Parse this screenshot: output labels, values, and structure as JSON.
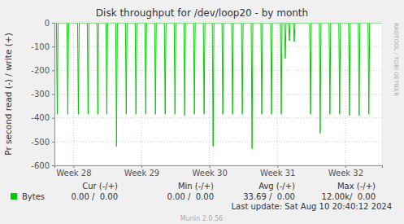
{
  "chart_data": {
    "type": "line",
    "title": "Disk throughput for /dev/loop20 - by month",
    "y_label": "Pr second read (-) / write (+)",
    "x": [
      27.72,
      27.749,
      27.761,
      27.773,
      27.904,
      27.916,
      27.928,
      28.06,
      28.072,
      28.084,
      28.203,
      28.215,
      28.227,
      28.346,
      28.358,
      28.37,
      28.478,
      28.49,
      28.502,
      28.621,
      28.633,
      28.645,
      28.764,
      28.776,
      28.788,
      28.907,
      28.919,
      28.931,
      29.051,
      29.063,
      29.075,
      29.194,
      29.206,
      29.218,
      29.337,
      29.349,
      29.361,
      29.481,
      29.493,
      29.505,
      29.624,
      29.636,
      29.648,
      29.767,
      29.779,
      29.791,
      29.91,
      29.922,
      29.934,
      30.042,
      30.054,
      30.066,
      30.185,
      30.197,
      30.209,
      30.328,
      30.34,
      30.352,
      30.472,
      30.484,
      30.496,
      30.615,
      30.627,
      30.639,
      30.758,
      30.77,
      30.782,
      30.901,
      30.913,
      30.925,
      31.045,
      31.057,
      31.069,
      31.104,
      31.116,
      31.128,
      31.164,
      31.176,
      31.188,
      31.236,
      31.248,
      31.26,
      31.475,
      31.487,
      31.499,
      31.618,
      31.63,
      31.642,
      31.761,
      31.773,
      31.785,
      31.904,
      31.916,
      31.928,
      32.048,
      32.06,
      32.072,
      32.191,
      32.203,
      32.215,
      32.334,
      32.346,
      32.358,
      32.54
    ],
    "series": [
      {
        "name": "Bytes",
        "color": "#00cc00",
        "values": [
          0,
          0,
          -385,
          0,
          0,
          -385,
          0,
          0,
          -385,
          0,
          0,
          -385,
          0,
          0,
          -385,
          0,
          0,
          -385,
          0,
          0,
          -520,
          0,
          0,
          -385,
          0,
          0,
          -385,
          0,
          0,
          -385,
          0,
          0,
          -385,
          0,
          0,
          -385,
          0,
          0,
          -385,
          0,
          0,
          -390,
          0,
          0,
          -385,
          0,
          0,
          -385,
          0,
          0,
          -520,
          0,
          0,
          -385,
          0,
          0,
          -385,
          0,
          0,
          -385,
          0,
          0,
          -530,
          0,
          0,
          -385,
          0,
          0,
          -385,
          0,
          0,
          -385,
          0,
          0,
          -150,
          0,
          0,
          -75,
          0,
          0,
          -80,
          0,
          0,
          -385,
          0,
          0,
          -465,
          0,
          0,
          -385,
          0,
          0,
          -385,
          0,
          0,
          -390,
          0,
          0,
          -390,
          0,
          0,
          -385,
          0,
          0
        ]
      }
    ],
    "xlim": [
      27.72,
      32.54
    ],
    "xticks": [
      {
        "value": 28,
        "label": "Week 28"
      },
      {
        "value": 29,
        "label": "Week 29"
      },
      {
        "value": 30,
        "label": "Week 30"
      },
      {
        "value": 31,
        "label": "Week 31"
      },
      {
        "value": 32,
        "label": "Week 32"
      }
    ],
    "ylim": [
      -600,
      0
    ],
    "yticks": [
      -600,
      -500,
      -400,
      -300,
      -200,
      -100,
      0
    ],
    "grid": true,
    "summary": {
      "headers": [
        "Cur (-/+)",
        "Min (-/+)",
        "Avg (-/+)",
        "Max (-/+)"
      ],
      "values": [
        [
          "0.00 /  0.00",
          "0.00 /  0.00",
          "33.69 /  0.00",
          "12.00k/  0.00"
        ]
      ]
    },
    "last_update": "Last update: Sat Aug 10 20:40:12 2024",
    "footer": "Munin 2.0.56",
    "watermark": "RRDTOOL / TOBI OETIKER"
  }
}
